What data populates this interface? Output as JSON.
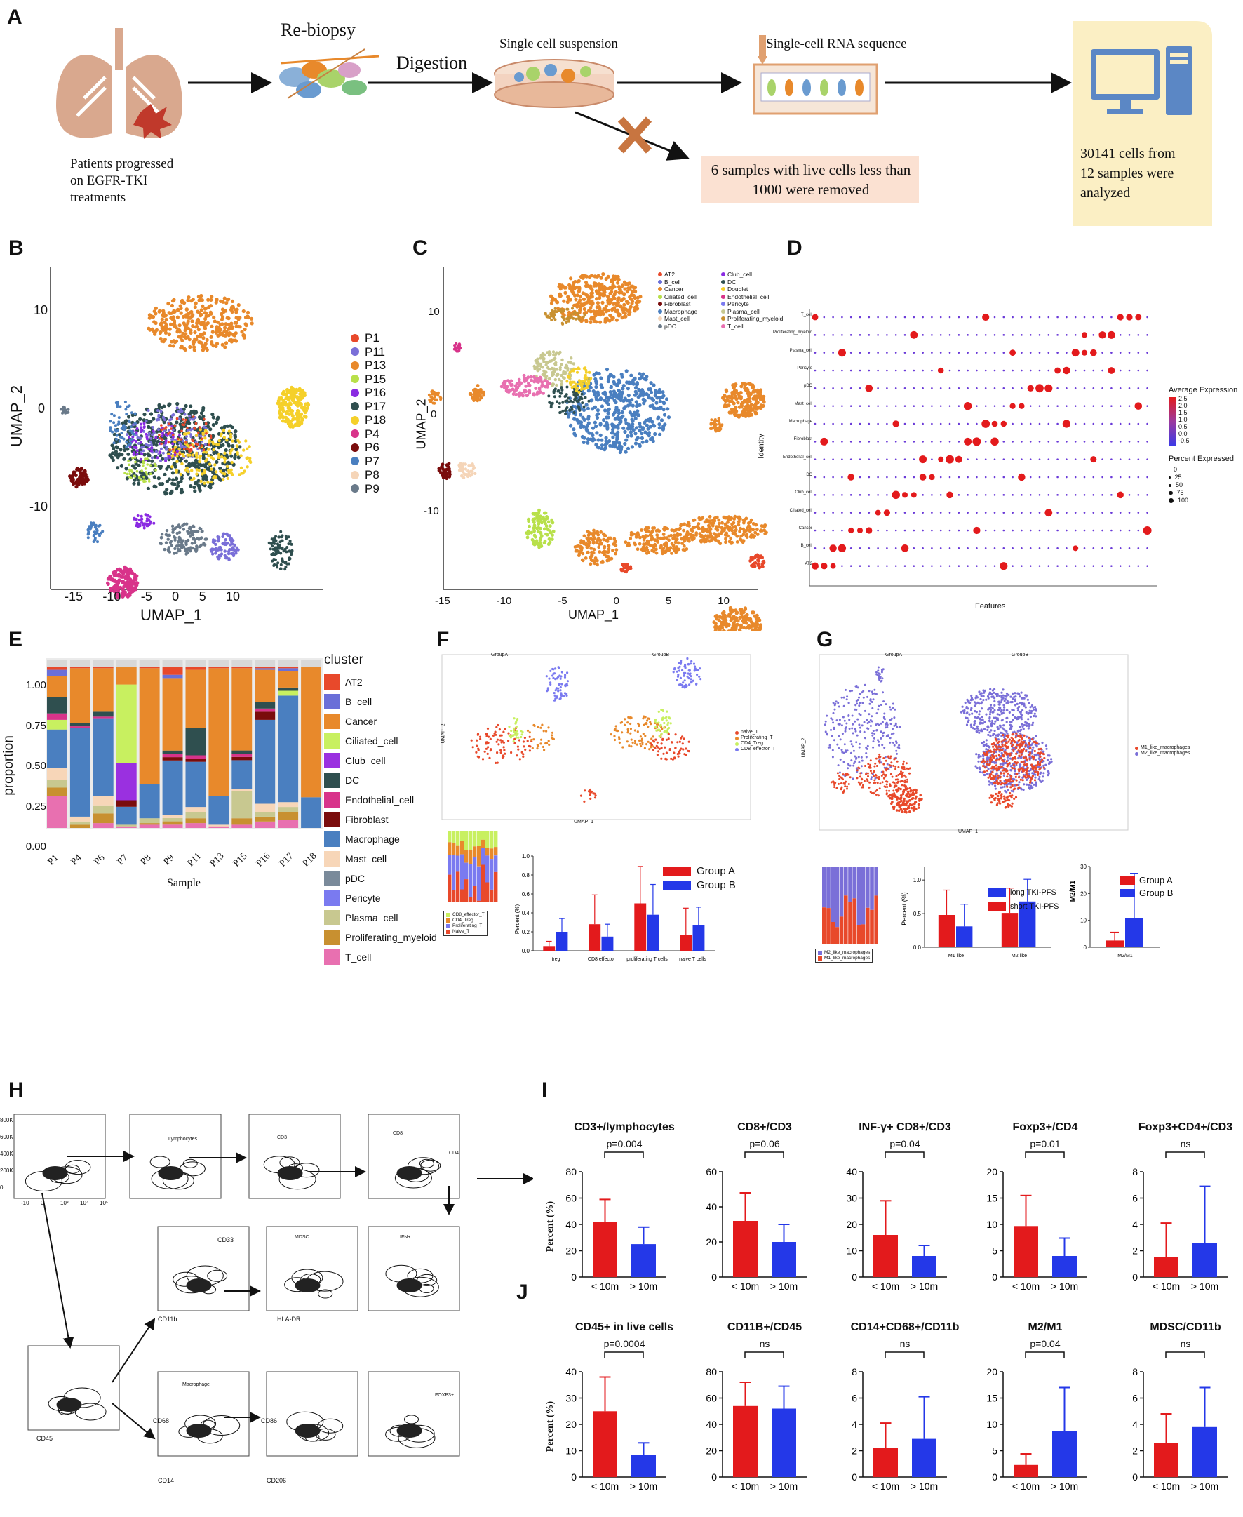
{
  "panel_labels": [
    "A",
    "B",
    "C",
    "D",
    "E",
    "F",
    "G",
    "H",
    "I",
    "J"
  ],
  "colors": {
    "red": "#e31a1c",
    "blue": "#2438e8",
    "orange": "#e8892b",
    "yellowbox": "#fbefc4",
    "peach": "#fbe1d2",
    "lung": "#d9a88e",
    "screen": "#5b87c5"
  },
  "workflow": {
    "patients": "Patients progressed on  EGFR-TKI treatments",
    "rebiopsy": "Re-biopsy",
    "digestion": "Digestion",
    "suspension": "Single cell suspension",
    "sequencing": "Single-cell RNA sequence",
    "removed": "6 samples with live cells less than 1000 were removed",
    "analyzed": "30141 cells from 12 samples were analyzed"
  },
  "umap_b": {
    "xlabel": "UMAP_1",
    "ylabel": "UMAP_2",
    "xticks": [
      "-15",
      "-10",
      "-5",
      "0",
      "5",
      "10"
    ],
    "yticks": [
      "10",
      "0",
      "-10"
    ],
    "legend": [
      {
        "name": "P1",
        "color": "#e8492b"
      },
      {
        "name": "P11",
        "color": "#7a6fd8"
      },
      {
        "name": "P13",
        "color": "#e8892b"
      },
      {
        "name": "P15",
        "color": "#b8e04a"
      },
      {
        "name": "P16",
        "color": "#8a2be2"
      },
      {
        "name": "P17",
        "color": "#2f4f4f"
      },
      {
        "name": "P18",
        "color": "#f5d02a"
      },
      {
        "name": "P4",
        "color": "#d8338a"
      },
      {
        "name": "P6",
        "color": "#7a0c0c"
      },
      {
        "name": "P7",
        "color": "#4a7fc0"
      },
      {
        "name": "P8",
        "color": "#f5d5b8"
      },
      {
        "name": "P9",
        "color": "#6a7a8a"
      }
    ]
  },
  "umap_c": {
    "xlabel": "UMAP_1",
    "ylabel": "UMAP_2",
    "xticks": [
      "-15",
      "-10",
      "-5",
      "0",
      "5",
      "10"
    ],
    "yticks": [
      "10",
      "0",
      "-10"
    ],
    "legend": [
      {
        "name": "AT2",
        "color": "#e8492b"
      },
      {
        "name": "Club_cell",
        "color": "#8a2be2"
      },
      {
        "name": "B_cell",
        "color": "#6a6fd8"
      },
      {
        "name": "DC",
        "color": "#2f4f4f"
      },
      {
        "name": "Cancer",
        "color": "#e8892b"
      },
      {
        "name": "Doublet",
        "color": "#f5d02a"
      },
      {
        "name": "Ciliated_cell",
        "color": "#b8e04a"
      },
      {
        "name": "Endothelial_cell",
        "color": "#d8338a"
      },
      {
        "name": "Fibroblast",
        "color": "#7a0c0c"
      },
      {
        "name": "Pericyte",
        "color": "#7a7af0"
      },
      {
        "name": "Macrophage",
        "color": "#4a7fc0"
      },
      {
        "name": "Plasma_cell",
        "color": "#c8c890"
      },
      {
        "name": "Mast_cell",
        "color": "#f5d5b8"
      },
      {
        "name": "Proliferating_myeloid",
        "color": "#c89030"
      },
      {
        "name": "pDC",
        "color": "#6a7a8a"
      },
      {
        "name": "T_cell",
        "color": "#e870b0"
      }
    ]
  },
  "dotplot": {
    "xlabel": "Features",
    "ylabel": "Identity",
    "rows": [
      "T_cell",
      "Proliferating_myeloid",
      "Plasma_cell",
      "Pericyte",
      "pDC",
      "Mast_cell",
      "Macrophage",
      "Fibroblast",
      "Endothelial_cell",
      "DC",
      "Club_cell",
      "Ciliated_cell",
      "Cancer",
      "B_cell",
      "AT2"
    ],
    "legend_expr_title": "Average Expression",
    "legend_expr_ticks": [
      "2.5",
      "2.0",
      "1.5",
      "1.0",
      "0.5",
      "0.0",
      "-0.5"
    ],
    "legend_pct_title": "Percent Expressed",
    "legend_pct_ticks": [
      "0",
      "25",
      "50",
      "75",
      "100"
    ]
  },
  "stacked_e": {
    "ylabel": "proportion",
    "xlabel": "Sample",
    "yticks": [
      "0.00",
      "0.25",
      "0.50",
      "0.75",
      "1.00"
    ],
    "legend_title": "cluster",
    "samples": [
      "P1",
      "P4",
      "P6",
      "P7",
      "P8",
      "P9",
      "P11",
      "P13",
      "P15",
      "P16",
      "P17",
      "P18"
    ],
    "clusters": [
      {
        "name": "AT2",
        "color": "#e8492b"
      },
      {
        "name": "B_cell",
        "color": "#6a6fd8"
      },
      {
        "name": "Cancer",
        "color": "#e8892b"
      },
      {
        "name": "Ciliated_cell",
        "color": "#c8f060"
      },
      {
        "name": "Club_cell",
        "color": "#9a30e0"
      },
      {
        "name": "DC",
        "color": "#2f4f4f"
      },
      {
        "name": "Endothelial_cell",
        "color": "#d8338a"
      },
      {
        "name": "Fibroblast",
        "color": "#7a0c0c"
      },
      {
        "name": "Macrophage",
        "color": "#4a7fc0"
      },
      {
        "name": "Mast_cell",
        "color": "#f7d6b8"
      },
      {
        "name": "pDC",
        "color": "#7a8a9a"
      },
      {
        "name": "Pericyte",
        "color": "#7a7af0"
      },
      {
        "name": "Plasma_cell",
        "color": "#c8c890"
      },
      {
        "name": "Proliferating_myeloid",
        "color": "#c89030"
      },
      {
        "name": "T_cell",
        "color": "#e870b0"
      }
    ]
  },
  "chart_data": [
    {
      "type": "bar",
      "panel": "E",
      "stacked": true,
      "title": "",
      "xlabel": "Sample",
      "ylabel": "proportion",
      "ylim": [
        0,
        1
      ],
      "categories": [
        "P1",
        "P4",
        "P6",
        "P7",
        "P8",
        "P9",
        "P11",
        "P13",
        "P15",
        "P16",
        "P17",
        "P18"
      ],
      "series": [
        {
          "name": "T_cell",
          "values": [
            0.2,
            0.0,
            0.03,
            0.01,
            0.02,
            0.02,
            0.03,
            0.01,
            0.02,
            0.04,
            0.05,
            0.0
          ]
        },
        {
          "name": "Proliferating_myeloid",
          "values": [
            0.05,
            0.02,
            0.06,
            0.0,
            0.01,
            0.02,
            0.03,
            0.0,
            0.04,
            0.03,
            0.05,
            0.0
          ]
        },
        {
          "name": "Plasma_cell",
          "values": [
            0.05,
            0.02,
            0.05,
            0.01,
            0.03,
            0.02,
            0.04,
            0.0,
            0.17,
            0.03,
            0.03,
            0.0
          ]
        },
        {
          "name": "Mast_cell",
          "values": [
            0.07,
            0.03,
            0.06,
            0.0,
            0.0,
            0.02,
            0.03,
            0.01,
            0.01,
            0.05,
            0.03,
            0.0
          ]
        },
        {
          "name": "Macrophage",
          "values": [
            0.24,
            0.55,
            0.48,
            0.11,
            0.21,
            0.33,
            0.28,
            0.18,
            0.18,
            0.52,
            0.66,
            0.19
          ]
        },
        {
          "name": "Fibroblast",
          "values": [
            0.0,
            0.0,
            0.0,
            0.04,
            0.0,
            0.02,
            0.02,
            0.0,
            0.02,
            0.05,
            0.0,
            0.0
          ]
        },
        {
          "name": "Club_cell",
          "values": [
            0.0,
            0.0,
            0.0,
            0.23,
            0.0,
            0.0,
            0.0,
            0.0,
            0.0,
            0.0,
            0.0,
            0.0
          ]
        },
        {
          "name": "Ciliated_cell",
          "values": [
            0.06,
            0.0,
            0.0,
            0.48,
            0.0,
            0.0,
            0.0,
            0.0,
            0.0,
            0.0,
            0.03,
            0.0
          ]
        },
        {
          "name": "Endothelial_cell",
          "values": [
            0.04,
            0.01,
            0.01,
            0.0,
            0.0,
            0.02,
            0.02,
            0.0,
            0.02,
            0.02,
            0.0,
            0.0
          ]
        },
        {
          "name": "DC",
          "values": [
            0.1,
            0.02,
            0.03,
            0.0,
            0.0,
            0.02,
            0.17,
            0.0,
            0.02,
            0.04,
            0.02,
            0.0
          ]
        },
        {
          "name": "Cancer",
          "values": [
            0.13,
            0.34,
            0.27,
            0.11,
            0.72,
            0.44,
            0.36,
            0.79,
            0.51,
            0.2,
            0.1,
            0.81
          ]
        },
        {
          "name": "B_cell",
          "values": [
            0.04,
            0.0,
            0.0,
            0.0,
            0.0,
            0.02,
            0.0,
            0.0,
            0.0,
            0.01,
            0.02,
            0.0
          ]
        },
        {
          "name": "AT2",
          "values": [
            0.02,
            0.01,
            0.01,
            0.0,
            0.01,
            0.05,
            0.02,
            0.01,
            0.01,
            0.01,
            0.01,
            0.0
          ]
        }
      ]
    },
    {
      "type": "bar",
      "panel": "F",
      "title": "",
      "xlabel": "",
      "ylabel": "Percent (%)",
      "ylim": [
        0,
        1.0
      ],
      "categories": [
        "treg",
        "CD8 effector",
        "proliferating T cells",
        "naive T cells"
      ],
      "series": [
        {
          "name": "Group A",
          "values": [
            0.05,
            0.28,
            0.5,
            0.17
          ],
          "errors": [
            0.05,
            0.31,
            0.39,
            0.28
          ]
        },
        {
          "name": "Group B",
          "values": [
            0.2,
            0.15,
            0.38,
            0.27
          ],
          "errors": [
            0.14,
            0.13,
            0.32,
            0.19
          ]
        }
      ]
    },
    {
      "type": "bar",
      "panel": "G",
      "title": "",
      "xlabel": "",
      "ylabel": "Percent (%)",
      "ylim": [
        0,
        1.2
      ],
      "categories": [
        "M1 like",
        "M2 like"
      ],
      "series": [
        {
          "name": "short TKI-PFS",
          "values": [
            0.48,
            0.51
          ],
          "errors": [
            0.37,
            0.37
          ]
        },
        {
          "name": "long TKI-PFS",
          "values": [
            0.31,
            0.68
          ],
          "errors": [
            0.33,
            0.33
          ]
        }
      ]
    },
    {
      "type": "bar",
      "panel": "G",
      "title": "",
      "xlabel": "",
      "ylabel": "M2/M1",
      "ylim": [
        0,
        30
      ],
      "categories": [
        "M2/M1"
      ],
      "series": [
        {
          "name": "Group A",
          "values": [
            2.5
          ],
          "errors": [
            3.1
          ]
        },
        {
          "name": "Group B",
          "values": [
            10.8
          ],
          "errors": [
            16.7
          ]
        }
      ]
    },
    {
      "type": "bar",
      "panel": "I",
      "title": "CD3+/lymphocytes",
      "ylabel": "Percent (%)",
      "ylim": [
        0,
        80
      ],
      "yticks": [
        0,
        20,
        40,
        60,
        80
      ],
      "categories": [
        "< 10m",
        "> 10m"
      ],
      "values": [
        42,
        25
      ],
      "errors": [
        17,
        13
      ],
      "pvalue": "p=0.004"
    },
    {
      "type": "bar",
      "panel": "I",
      "title": "CD8+/CD3",
      "ylabel": "",
      "ylim": [
        0,
        60
      ],
      "yticks": [
        0,
        20,
        40,
        60
      ],
      "categories": [
        "< 10m",
        "> 10m"
      ],
      "values": [
        32,
        20
      ],
      "errors": [
        16,
        10
      ],
      "pvalue": "p=0.06"
    },
    {
      "type": "bar",
      "panel": "I",
      "title": "INF-γ+ CD8+/CD3",
      "ylabel": "",
      "ylim": [
        0,
        40
      ],
      "yticks": [
        0,
        10,
        20,
        30,
        40
      ],
      "categories": [
        "< 10m",
        "> 10m"
      ],
      "values": [
        16,
        8
      ],
      "errors": [
        13,
        4
      ],
      "pvalue": "p=0.04"
    },
    {
      "type": "bar",
      "panel": "I",
      "title": "Foxp3+/CD4",
      "ylabel": "",
      "ylim": [
        0,
        20
      ],
      "yticks": [
        0,
        5,
        10,
        15,
        20
      ],
      "categories": [
        "< 10m",
        "> 10m"
      ],
      "values": [
        9.7,
        4.0
      ],
      "errors": [
        5.8,
        3.4
      ],
      "pvalue": "p=0.01"
    },
    {
      "type": "bar",
      "panel": "I",
      "title": "Foxp3+CD4+/CD3",
      "ylabel": "",
      "ylim": [
        0,
        8
      ],
      "yticks": [
        0,
        2,
        4,
        6,
        8
      ],
      "categories": [
        "< 10m",
        "> 10m"
      ],
      "values": [
        1.5,
        2.6
      ],
      "errors": [
        2.6,
        4.3
      ],
      "pvalue": "ns"
    },
    {
      "type": "bar",
      "panel": "J",
      "title": "CD45+ in live cells",
      "ylabel": "Percent (%)",
      "ylim": [
        0,
        40
      ],
      "yticks": [
        0,
        10,
        20,
        30,
        40
      ],
      "categories": [
        "< 10m",
        "> 10m"
      ],
      "values": [
        25,
        8.5
      ],
      "errors": [
        13,
        4.5
      ],
      "pvalue": "p=0.0004"
    },
    {
      "type": "bar",
      "panel": "J",
      "title": "CD11B+/CD45",
      "ylabel": "",
      "ylim": [
        0,
        80
      ],
      "yticks": [
        0,
        20,
        40,
        60,
        80
      ],
      "categories": [
        "< 10m",
        "> 10m"
      ],
      "values": [
        54,
        52
      ],
      "errors": [
        18,
        17
      ],
      "pvalue": "ns"
    },
    {
      "type": "bar",
      "panel": "J",
      "title": "CD14+CD68+/CD11b",
      "ylabel": "",
      "ylim": [
        0,
        8
      ],
      "yticks": [
        0,
        2,
        4,
        6,
        8
      ],
      "categories": [
        "< 10m",
        "> 10m"
      ],
      "values": [
        2.2,
        2.9
      ],
      "errors": [
        1.9,
        3.2
      ],
      "pvalue": "ns"
    },
    {
      "type": "bar",
      "panel": "J",
      "title": "M2/M1",
      "ylabel": "",
      "ylim": [
        0,
        20
      ],
      "yticks": [
        0,
        5,
        10,
        15,
        20
      ],
      "categories": [
        "< 10m",
        "> 10m"
      ],
      "values": [
        2.3,
        8.8
      ],
      "errors": [
        2.1,
        8.2
      ],
      "pvalue": "p=0.04"
    },
    {
      "type": "bar",
      "panel": "J",
      "title": "MDSC/CD11b",
      "ylabel": "",
      "ylim": [
        0,
        8
      ],
      "yticks": [
        0,
        2,
        4,
        6,
        8
      ],
      "categories": [
        "< 10m",
        "> 10m"
      ],
      "values": [
        2.6,
        3.8
      ],
      "errors": [
        2.2,
        3.0
      ],
      "pvalue": "ns"
    }
  ],
  "panel_f": {
    "groupA": "GroupA",
    "groupB": "GroupB",
    "xlabel": "UMAP_1",
    "ylabel": "UMAP_2",
    "umap_legend": [
      {
        "name": "naive_T",
        "color": "#e8492b"
      },
      {
        "name": "Proliferating_T",
        "color": "#e8892b"
      },
      {
        "name": "CD4_Treg",
        "color": "#c8f060"
      },
      {
        "name": "CD8_effector_T",
        "color": "#7a7af0"
      }
    ],
    "mini_legend": [
      {
        "name": "CD8_effector_T",
        "color": "#c8f060"
      },
      {
        "name": "CD4_Treg",
        "color": "#e8892b"
      },
      {
        "name": "Proliferating_T",
        "color": "#7a7af0"
      },
      {
        "name": "Naive_T",
        "color": "#e8492b"
      }
    ],
    "mini_yticks": [
      "0.0",
      "0.2",
      "0.4",
      "0.6",
      "0.8",
      "1.0"
    ],
    "bar_legend": [
      "Group A",
      "Group B"
    ],
    "bar_yticks": [
      "0.0",
      "0.2",
      "0.4",
      "0.6",
      "0.8",
      "1.0"
    ]
  },
  "panel_g": {
    "groupA": "GroupA",
    "groupB": "GroupB",
    "xlabel": "UMAP_1",
    "ylabel": "UMAP_2",
    "umap_legend": [
      {
        "name": "M1_like_macrophages",
        "color": "#e8492b"
      },
      {
        "name": "M2_like_macrophages",
        "color": "#7a6fd8"
      }
    ],
    "mini_legend": [
      {
        "name": "M2_like_macrophages",
        "color": "#7a6fd8"
      },
      {
        "name": "M1_like_macrophages",
        "color": "#e8492b"
      }
    ],
    "mini_yticks": [
      "0",
      "0.2",
      "0.4",
      "0.6",
      "0.8",
      "1.0"
    ],
    "bar_legend": [
      "long TKI-PFS",
      "short TKI-PFS"
    ],
    "bar_yticks": [
      "0.0",
      "0.5",
      "1.0"
    ],
    "ratio_legend": [
      "Group A",
      "Group B"
    ],
    "ratio_yticks": [
      "0",
      "10",
      "20",
      "30"
    ]
  },
  "flow_h": {
    "labels": [
      "Lymphocytes",
      "CD3",
      "CD8",
      "CD4",
      "MDSC",
      "IFN+",
      "Macrophage",
      "FOXP3+"
    ],
    "axis": [
      "CD45",
      "CD11b",
      "HLA-DR",
      "CD14",
      "CD206",
      "CD33",
      "CD68",
      "CD86"
    ],
    "yticks": [
      "800K",
      "600K",
      "400K",
      "200K",
      "0"
    ],
    "xticks": [
      "-10",
      "0",
      "10³",
      "10⁴",
      "10⁵"
    ]
  }
}
